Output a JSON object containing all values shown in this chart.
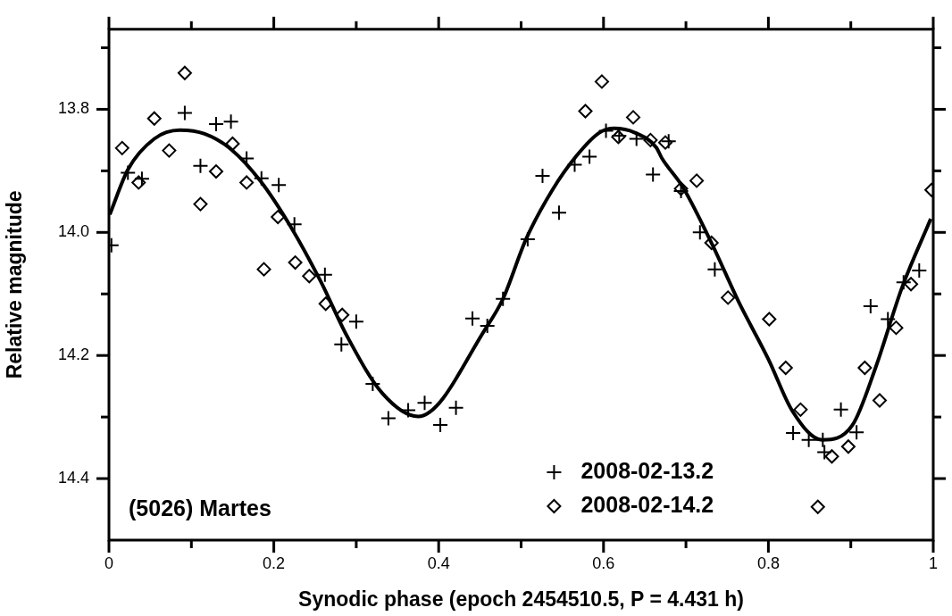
{
  "chart_data": {
    "type": "scatter",
    "xlabel": "Synodic phase (epoch 2454510.5, P = 4.431 h)",
    "ylabel": "Relative magnitude",
    "xlim": [
      0,
      1
    ],
    "xticks": [
      0,
      {
        "value": 0.1,
        "label": null
      },
      0.2,
      {
        "value": 0.3,
        "label": null
      },
      0.4,
      {
        "value": 0.5,
        "label": null
      },
      0.6,
      {
        "value": 0.7,
        "label": null
      },
      0.8,
      {
        "value": 0.9,
        "label": null
      },
      1
    ],
    "ylim": [
      14.5,
      13.67
    ],
    "yticks": [
      {
        "value": 13.7,
        "label": null
      },
      13.8,
      {
        "value": 13.9,
        "label": null
      },
      {
        "value": 14.0,
        "label": "14.0"
      },
      {
        "value": 14.1,
        "label": null
      },
      14.2,
      {
        "value": 14.3,
        "label": null
      },
      14.4
    ],
    "grid": false,
    "legend": "bottom",
    "annotations": [
      "(5026) Martes"
    ],
    "series": [
      {
        "name": "2008-02-13.2",
        "color": "#000000",
        "marker": "cross",
        "x": [
          0.003,
          0.023,
          0.04,
          0.092,
          0.111,
          0.13,
          0.148,
          0.167,
          0.185,
          0.206,
          0.225,
          0.262,
          0.282,
          0.3,
          0.32,
          0.339,
          0.363,
          0.383,
          0.402,
          0.421,
          0.441,
          0.459,
          0.478,
          0.508,
          0.526,
          0.546,
          0.565,
          0.583,
          0.603,
          0.619,
          0.64,
          0.66,
          0.679,
          0.694,
          0.717,
          0.735,
          0.83,
          0.849,
          0.866,
          0.868,
          0.888,
          0.907,
          0.924,
          0.945,
          0.964,
          0.983
        ],
        "values": [
          14.021,
          13.903,
          13.913,
          13.806,
          13.892,
          13.824,
          13.82,
          13.88,
          13.912,
          13.923,
          13.987,
          14.069,
          14.182,
          14.145,
          14.246,
          14.302,
          14.289,
          14.277,
          14.313,
          14.285,
          14.14,
          14.152,
          14.108,
          14.011,
          13.908,
          13.968,
          13.89,
          13.877,
          13.835,
          13.843,
          13.848,
          13.906,
          13.852,
          13.933,
          14.0,
          14.06,
          14.326,
          14.337,
          14.337,
          14.357,
          14.288,
          14.325,
          14.12,
          14.141,
          14.081,
          14.062
        ]
      },
      {
        "name": "2008-02-14.2",
        "color": "#000000",
        "marker": "diamond",
        "x": [
          0.016,
          0.036,
          0.055,
          0.073,
          0.092,
          0.111,
          0.13,
          0.15,
          0.167,
          0.188,
          0.205,
          0.226,
          0.243,
          0.263,
          0.283,
          0.578,
          0.598,
          0.618,
          0.636,
          0.657,
          0.675,
          0.694,
          0.713,
          0.731,
          0.751,
          0.801,
          0.821,
          0.839,
          0.86,
          0.877,
          0.897,
          0.917,
          0.935,
          0.955,
          0.973,
          0.998
        ],
        "values": [
          13.863,
          13.919,
          13.815,
          13.867,
          13.741,
          13.954,
          13.901,
          13.856,
          13.919,
          14.06,
          13.975,
          14.049,
          14.071,
          14.116,
          14.134,
          13.803,
          13.755,
          13.845,
          13.813,
          13.85,
          13.854,
          13.929,
          13.916,
          14.017,
          14.106,
          14.141,
          14.22,
          14.288,
          14.446,
          14.364,
          14.348,
          14.22,
          14.273,
          14.155,
          14.084,
          13.931
        ]
      },
      {
        "type": "line",
        "color": "#000000",
        "marker": "none",
        "x": [
          0.001,
          0.023,
          0.055,
          0.086,
          0.116,
          0.149,
          0.184,
          0.221,
          0.257,
          0.289,
          0.332,
          0.375,
          0.459,
          0.478,
          0.506,
          0.538,
          0.567,
          0.595,
          0.613,
          0.638,
          0.664,
          0.671,
          0.696,
          0.732,
          0.764,
          0.8,
          0.829,
          0.865,
          0.902,
          0.93,
          0.962,
          0.997
        ],
        "values": [
          13.971,
          13.898,
          13.848,
          13.834,
          13.84,
          13.866,
          13.917,
          13.992,
          14.08,
          14.169,
          14.262,
          14.299,
          14.152,
          14.108,
          14.011,
          13.931,
          13.876,
          13.838,
          13.831,
          13.838,
          13.862,
          13.88,
          13.926,
          14.02,
          14.113,
          14.206,
          14.29,
          14.337,
          14.313,
          14.22,
          14.09,
          13.978
        ]
      }
    ]
  }
}
